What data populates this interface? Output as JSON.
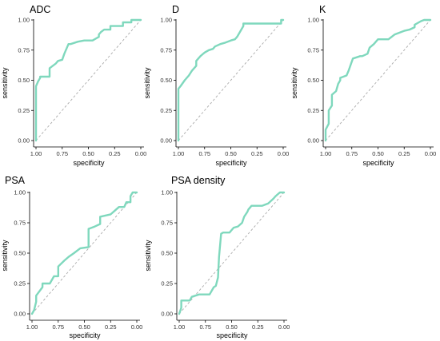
{
  "colors": {
    "roc_curve": "#7fd8bd",
    "reference_line": "#aaaaaa",
    "axis": "#000000"
  },
  "chart_data": [
    {
      "type": "line",
      "title": "ADC",
      "xlabel": "specificity",
      "ylabel": "sensitivity",
      "xlim": [
        1.0,
        0.0
      ],
      "ylim": [
        0.0,
        1.0
      ],
      "x_reversed": true,
      "xticks": [
        "1.00",
        "0.75",
        "0.50",
        "0.25",
        "0.00"
      ],
      "yticks": [
        "0.00",
        "0.25",
        "0.50",
        "0.75",
        "1.00"
      ],
      "grid": false,
      "reference_diagonal": true,
      "series": [
        {
          "x": [
            1.0,
            1.0,
            0.98,
            0.96,
            0.96,
            0.87,
            0.87,
            0.81,
            0.79,
            0.75,
            0.73,
            0.69,
            0.67,
            0.6,
            0.54,
            0.46,
            0.4,
            0.4,
            0.38,
            0.35,
            0.31,
            0.29,
            0.29,
            0.17,
            0.17,
            0.09,
            0.09,
            0.0
          ],
          "y": [
            0.0,
            0.45,
            0.49,
            0.52,
            0.53,
            0.53,
            0.6,
            0.64,
            0.66,
            0.67,
            0.72,
            0.8,
            0.8,
            0.82,
            0.83,
            0.83,
            0.86,
            0.88,
            0.9,
            0.92,
            0.92,
            0.92,
            0.95,
            0.95,
            0.98,
            0.98,
            1.0,
            1.0
          ]
        }
      ]
    },
    {
      "type": "line",
      "title": "D",
      "xlabel": "specificity",
      "ylabel": "sensitivity",
      "xlim": [
        1.0,
        0.0
      ],
      "ylim": [
        0.0,
        1.0
      ],
      "x_reversed": true,
      "xticks": [
        "1.00",
        "0.75",
        "0.50",
        "0.25",
        "0.00"
      ],
      "yticks": [
        "0.00",
        "0.25",
        "0.50",
        "0.75",
        "1.00"
      ],
      "grid": false,
      "reference_diagonal": true,
      "series": [
        {
          "x": [
            1.0,
            1.0,
            0.98,
            0.94,
            0.9,
            0.87,
            0.83,
            0.83,
            0.79,
            0.75,
            0.71,
            0.67,
            0.65,
            0.6,
            0.56,
            0.5,
            0.46,
            0.44,
            0.42,
            0.38,
            0.38,
            0.02,
            0.02,
            0.0
          ],
          "y": [
            0.0,
            0.43,
            0.45,
            0.5,
            0.54,
            0.58,
            0.62,
            0.66,
            0.7,
            0.73,
            0.75,
            0.76,
            0.78,
            0.8,
            0.81,
            0.83,
            0.84,
            0.86,
            0.89,
            0.95,
            0.97,
            0.97,
            1.0,
            1.0
          ]
        }
      ]
    },
    {
      "type": "line",
      "title": "K",
      "xlabel": "specificity",
      "ylabel": "sensitivity",
      "xlim": [
        1.0,
        0.0
      ],
      "ylim": [
        0.0,
        1.0
      ],
      "x_reversed": true,
      "xticks": [
        "1.00",
        "0.75",
        "0.50",
        "0.25",
        "0.00"
      ],
      "yticks": [
        "0.00",
        "0.25",
        "0.50",
        "0.75",
        "1.00"
      ],
      "grid": false,
      "reference_diagonal": true,
      "series": [
        {
          "x": [
            1.0,
            1.0,
            0.97,
            0.97,
            0.94,
            0.94,
            0.9,
            0.88,
            0.86,
            0.86,
            0.8,
            0.78,
            0.74,
            0.67,
            0.65,
            0.6,
            0.58,
            0.54,
            0.5,
            0.46,
            0.4,
            0.34,
            0.25,
            0.2,
            0.15,
            0.15,
            0.09,
            0.06,
            0.0
          ],
          "y": [
            0.0,
            0.09,
            0.14,
            0.25,
            0.29,
            0.38,
            0.41,
            0.47,
            0.5,
            0.52,
            0.54,
            0.58,
            0.68,
            0.7,
            0.7,
            0.72,
            0.77,
            0.8,
            0.84,
            0.84,
            0.84,
            0.88,
            0.91,
            0.92,
            0.94,
            0.96,
            0.99,
            1.0,
            1.0
          ]
        }
      ]
    },
    {
      "type": "line",
      "title": "PSA",
      "xlabel": "specificity",
      "ylabel": "sensitivity",
      "xlim": [
        1.0,
        0.0
      ],
      "ylim": [
        0.0,
        1.0
      ],
      "x_reversed": true,
      "xticks": [
        "1.00",
        "0.75",
        "0.50",
        "0.25",
        "0.00"
      ],
      "yticks": [
        "0.00",
        "0.25",
        "0.50",
        "0.75",
        "1.00"
      ],
      "grid": false,
      "reference_diagonal": true,
      "series": [
        {
          "x": [
            1.0,
            0.98,
            0.96,
            0.96,
            0.9,
            0.9,
            0.83,
            0.79,
            0.75,
            0.75,
            0.69,
            0.65,
            0.6,
            0.54,
            0.46,
            0.46,
            0.4,
            0.35,
            0.35,
            0.25,
            0.21,
            0.17,
            0.12,
            0.1,
            0.1,
            0.06,
            0.06,
            0.04,
            0.02,
            0.0
          ],
          "y": [
            0.0,
            0.03,
            0.1,
            0.15,
            0.22,
            0.25,
            0.25,
            0.31,
            0.31,
            0.39,
            0.44,
            0.47,
            0.5,
            0.54,
            0.55,
            0.7,
            0.72,
            0.74,
            0.8,
            0.82,
            0.85,
            0.88,
            0.88,
            0.92,
            0.92,
            0.92,
            0.97,
            1.0,
            1.0,
            1.0
          ]
        }
      ]
    },
    {
      "type": "line",
      "title": "PSA density",
      "xlabel": "specificity",
      "ylabel": "sensitivity",
      "xlim": [
        1.0,
        0.0
      ],
      "ylim": [
        0.0,
        1.0
      ],
      "x_reversed": true,
      "xticks": [
        "1.00",
        "0.75",
        "0.50",
        "0.25",
        "0.00"
      ],
      "yticks": [
        "0.00",
        "0.25",
        "0.50",
        "0.75",
        "1.00"
      ],
      "grid": false,
      "reference_diagonal": true,
      "series": [
        {
          "x": [
            1.0,
            0.98,
            0.98,
            0.9,
            0.88,
            0.81,
            0.71,
            0.67,
            0.65,
            0.63,
            0.62,
            0.6,
            0.58,
            0.52,
            0.5,
            0.48,
            0.44,
            0.4,
            0.38,
            0.35,
            0.34,
            0.31,
            0.21,
            0.15,
            0.1,
            0.08,
            0.04,
            0.02,
            0.0
          ],
          "y": [
            0.0,
            0.05,
            0.11,
            0.11,
            0.14,
            0.16,
            0.16,
            0.22,
            0.23,
            0.3,
            0.47,
            0.66,
            0.67,
            0.67,
            0.69,
            0.71,
            0.72,
            0.75,
            0.8,
            0.84,
            0.86,
            0.89,
            0.89,
            0.91,
            0.95,
            0.97,
            1.0,
            1.0,
            1.0
          ]
        }
      ]
    }
  ]
}
